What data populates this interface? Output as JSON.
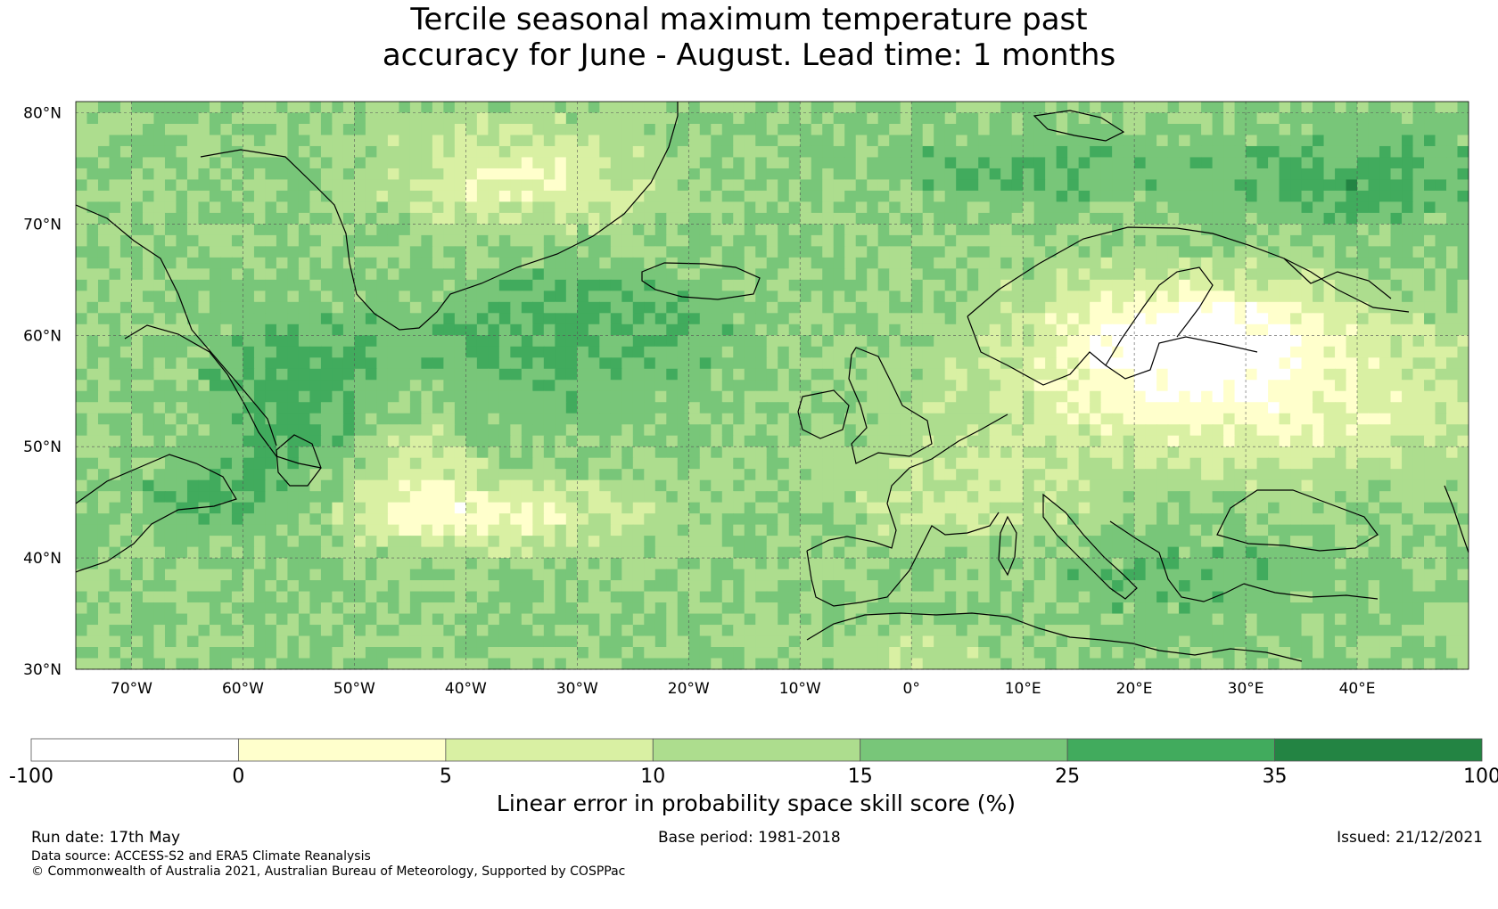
{
  "title": {
    "line1": "Tercile seasonal maximum temperature past",
    "line2": "accuracy for June - August. Lead time: 1 months"
  },
  "map": {
    "lat_labels": [
      "80°N",
      "70°N",
      "60°N",
      "50°N",
      "40°N",
      "30°N"
    ],
    "lon_labels": [
      "70°W",
      "60°W",
      "50°W",
      "40°W",
      "30°W",
      "20°W",
      "10°W",
      "0°",
      "10°E",
      "20°E",
      "30°E",
      "40°E"
    ],
    "lat_values": [
      80,
      70,
      60,
      50,
      40,
      30
    ],
    "lon_values": [
      -70,
      -60,
      -50,
      -40,
      -30,
      -20,
      -10,
      0,
      10,
      20,
      30,
      40
    ],
    "extent": {
      "lon_min": -75,
      "lon_max": 50,
      "lat_min": 30,
      "lat_max": 81
    }
  },
  "colorbar": {
    "boundaries": [
      "-100",
      "0",
      "5",
      "10",
      "15",
      "25",
      "35",
      "100"
    ],
    "colors": [
      "#ffffff",
      "#ffffcc",
      "#d9f0a3",
      "#addd8e",
      "#78c679",
      "#41ab5d",
      "#238443"
    ],
    "label": "Linear error in probability space skill score (%)"
  },
  "footer": {
    "run_date": "Run date: 17th May",
    "base_period": "Base period: 1981-2018",
    "issued": "Issued: 21/12/2021",
    "data_source": "Data source: ACCESS-S2 and ERA5 Climate Reanalysis",
    "copyright": "© Commonwealth of Australia 2021, Australian Bureau of Meteorology, Supported by COSPPac"
  }
}
